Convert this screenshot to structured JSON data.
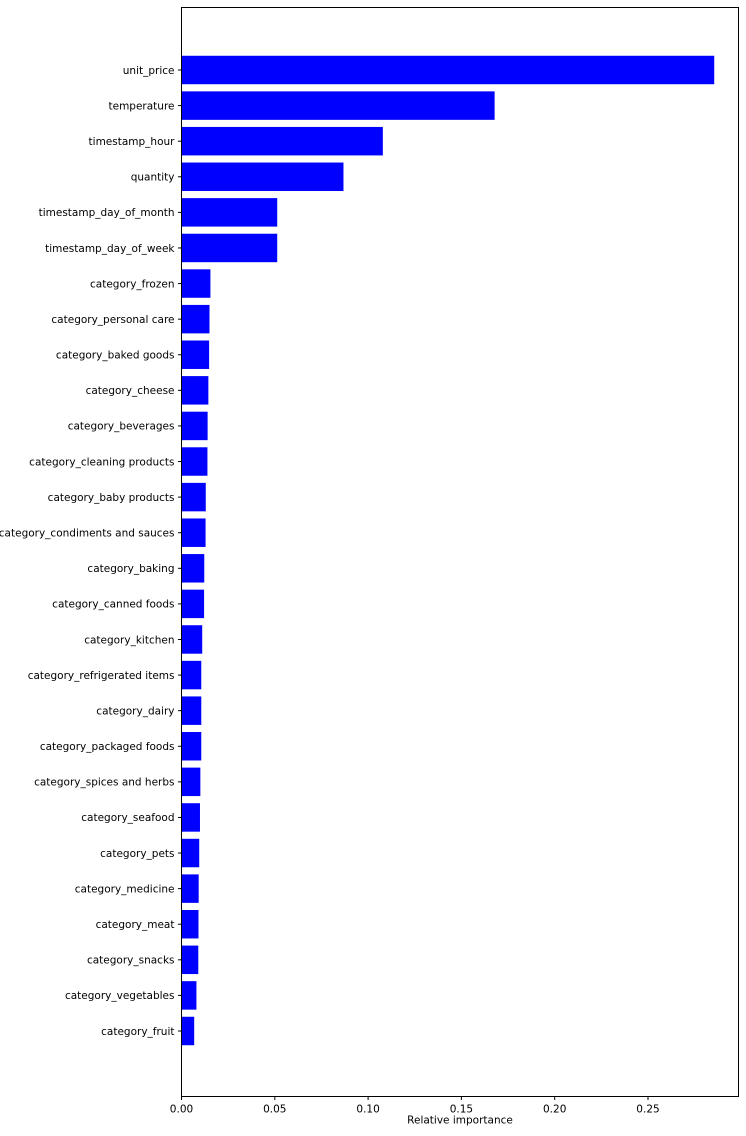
{
  "chart_data": {
    "type": "bar",
    "orientation": "horizontal",
    "title": "",
    "xlabel": "Relative importance",
    "ylabel": "",
    "xlim": [
      0,
      0.2985
    ],
    "xticks": [
      "0.00",
      "0.05",
      "0.10",
      "0.15",
      "0.20",
      "0.25"
    ],
    "grid": false,
    "legend": "none",
    "bar_color": "#0000ff",
    "categories": [
      "unit_price",
      "temperature",
      "timestamp_hour",
      "quantity",
      "timestamp_day_of_month",
      "timestamp_day_of_week",
      "category_frozen",
      "category_personal care",
      "category_baked goods",
      "category_cheese",
      "category_beverages",
      "category_cleaning products",
      "category_baby products",
      "category_condiments and sauces",
      "category_baking",
      "category_canned foods",
      "category_kitchen",
      "category_refrigerated items",
      "category_dairy",
      "category_packaged foods",
      "category_spices and herbs",
      "category_seafood",
      "category_pets",
      "category_medicine",
      "category_meat",
      "category_snacks",
      "category_vegetables",
      "category_fruit"
    ],
    "values": [
      0.2855,
      0.1678,
      0.1079,
      0.0868,
      0.0513,
      0.0513,
      0.0155,
      0.015,
      0.0148,
      0.0144,
      0.014,
      0.0139,
      0.013,
      0.0129,
      0.0122,
      0.0121,
      0.0111,
      0.0106,
      0.0106,
      0.0106,
      0.0101,
      0.0099,
      0.0095,
      0.0092,
      0.0091,
      0.009,
      0.008,
      0.0068
    ]
  }
}
